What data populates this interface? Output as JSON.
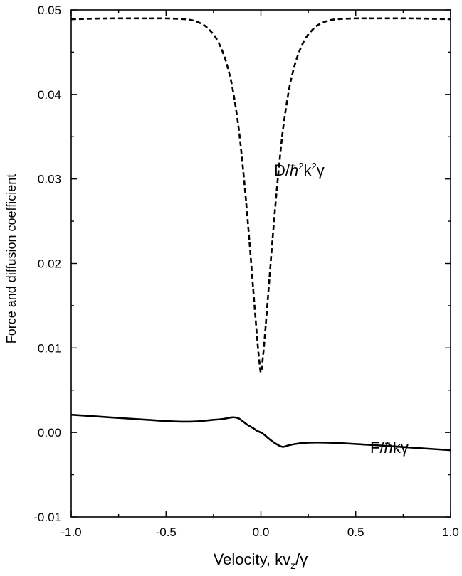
{
  "chart_data": {
    "type": "line",
    "xlabel_main": "Velocity, kv",
    "xlabel_sub": "z",
    "xlabel_tail": "/γ",
    "ylabel": "Force and diffusion coefficient",
    "xlim": [
      -1.0,
      1.0
    ],
    "ylim": [
      -0.01,
      0.05
    ],
    "x_ticks": [
      -1.0,
      -0.5,
      0.0,
      0.5,
      1.0
    ],
    "x_tick_labels": [
      "-1.0",
      "-0.5",
      "0.0",
      "0.5",
      "1.0"
    ],
    "y_ticks": [
      -0.01,
      0.0,
      0.01,
      0.02,
      0.03,
      0.04,
      0.05
    ],
    "y_tick_labels": [
      "-0.01",
      "0.00",
      "0.01",
      "0.02",
      "0.03",
      "0.04",
      "0.05"
    ],
    "grid": false,
    "series": [
      {
        "name": "D/ħ²k²γ",
        "label_parts": [
          "D/",
          "ħ",
          "2",
          "k",
          "2",
          "γ"
        ],
        "style": "dashed",
        "color": "#000000",
        "x": [
          -1.0,
          -0.8,
          -0.6,
          -0.5,
          -0.4,
          -0.35,
          -0.3,
          -0.27,
          -0.24,
          -0.21,
          -0.18,
          -0.15,
          -0.12,
          -0.1,
          -0.08,
          -0.06,
          -0.04,
          -0.02,
          -0.01,
          0.0,
          0.01,
          0.02,
          0.04,
          0.06,
          0.08,
          0.1,
          0.12,
          0.15,
          0.18,
          0.21,
          0.24,
          0.27,
          0.3,
          0.35,
          0.4,
          0.5,
          0.6,
          0.8,
          1.0
        ],
        "y": [
          0.0489,
          0.049,
          0.049,
          0.049,
          0.0489,
          0.0487,
          0.0482,
          0.0476,
          0.0468,
          0.0455,
          0.0436,
          0.0408,
          0.0365,
          0.0325,
          0.0278,
          0.0225,
          0.0168,
          0.0112,
          0.0088,
          0.0071,
          0.0088,
          0.0112,
          0.0168,
          0.0225,
          0.0278,
          0.0325,
          0.0365,
          0.0408,
          0.0436,
          0.0455,
          0.0468,
          0.0476,
          0.0482,
          0.0487,
          0.0489,
          0.049,
          0.049,
          0.049,
          0.0489
        ]
      },
      {
        "name": "F/ħkγ",
        "label_parts": [
          "F/",
          "ħ",
          "kγ"
        ],
        "style": "solid",
        "color": "#000000",
        "x": [
          -1.0,
          -0.8,
          -0.6,
          -0.45,
          -0.35,
          -0.25,
          -0.2,
          -0.15,
          -0.12,
          -0.1,
          -0.07,
          -0.04,
          -0.02,
          0.0,
          0.02,
          0.04,
          0.07,
          0.1,
          0.12,
          0.15,
          0.2,
          0.25,
          0.35,
          0.45,
          0.6,
          0.8,
          1.0
        ],
        "y": [
          0.0021,
          0.0018,
          0.0015,
          0.0013,
          0.0013,
          0.0015,
          0.0016,
          0.0018,
          0.0017,
          0.0014,
          0.0009,
          0.0005,
          0.0002,
          0.0,
          -0.0003,
          -0.0007,
          -0.0012,
          -0.0016,
          -0.0017,
          -0.0015,
          -0.0013,
          -0.0012,
          -0.0012,
          -0.0013,
          -0.0015,
          -0.0018,
          -0.0021
        ]
      }
    ]
  }
}
